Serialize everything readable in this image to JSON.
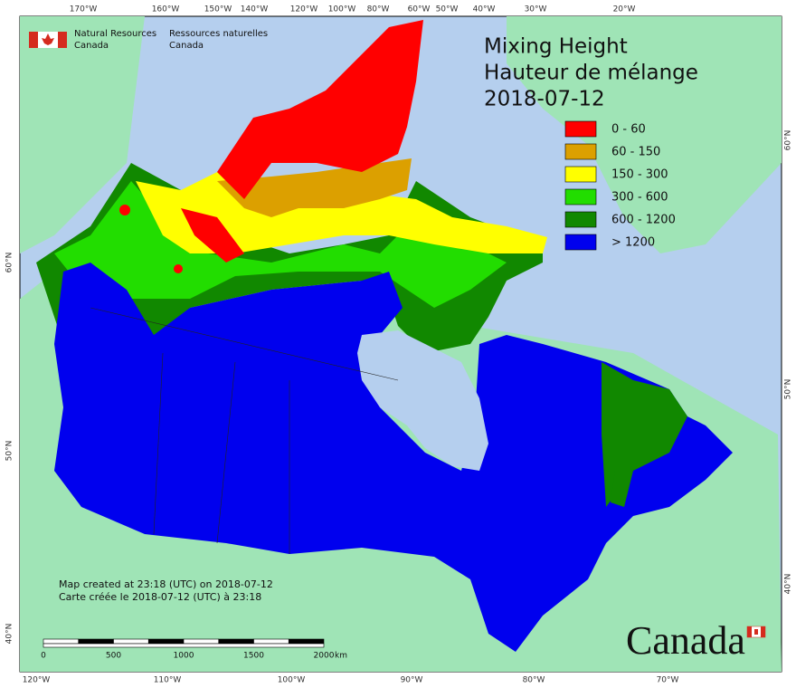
{
  "header": {
    "dept_en": [
      "Natural Resources",
      "Canada"
    ],
    "dept_fr": [
      "Ressources naturelles",
      "Canada"
    ]
  },
  "title": {
    "line1": "Mixing Height",
    "line2": "Hauteur de mélange",
    "date": "2018-07-12"
  },
  "legend": [
    {
      "label": "0 - 60",
      "color": "#ff0000"
    },
    {
      "label": "60 - 150",
      "color": "#dca000"
    },
    {
      "label": "150 - 300",
      "color": "#ffff00"
    },
    {
      "label": "300 - 600",
      "color": "#22dd00"
    },
    {
      "label": "600 - 1200",
      "color": "#118800"
    },
    {
      "label": "> 1200",
      "color": "#0000ee"
    }
  ],
  "graticule": {
    "top": [
      "170°W",
      "160°W",
      "150°W",
      "140°W",
      "120°W",
      "100°W",
      "80°W",
      "60°W",
      "50°W",
      "40°W",
      "30°W",
      "20°W"
    ],
    "bottom": [
      "120°W",
      "110°W",
      "100°W",
      "90°W",
      "80°W",
      "70°W"
    ],
    "left": [
      "60°N",
      "50°N",
      "40°N"
    ],
    "right": [
      "60°N",
      "50°N",
      "40°N"
    ]
  },
  "credits": [
    "Map created at 23:18 (UTC) on 2018-07-12",
    "Carte créée le 2018-07-12 (UTC) à 23:18"
  ],
  "scale": {
    "ticks": [
      "0",
      "500",
      "1000",
      "1500",
      "2000"
    ],
    "unit": "km"
  },
  "wordmark": "Canada"
}
